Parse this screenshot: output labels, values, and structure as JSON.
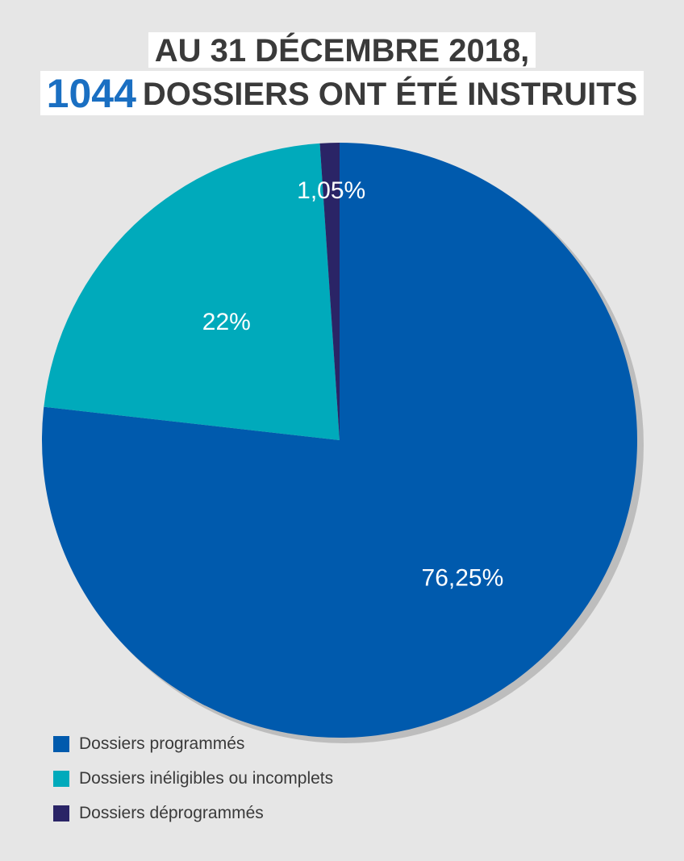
{
  "header": {
    "line1": "AU 31 DÉCEMBRE 2018,",
    "number": "1044",
    "line2_rest": "DOSSIERS ONT ÉTÉ INSTRUITS"
  },
  "chart_data": {
    "type": "pie",
    "title": "AU 31 DÉCEMBRE 2018, 1044 DOSSIERS ONT ÉTÉ INSTRUITS",
    "start_angle": "12 o'clock, clockwise",
    "slices": [
      {
        "name": "Dossiers programmés",
        "value": 76.25,
        "label": "76,25%",
        "color": "#005aad"
      },
      {
        "name": "Dossiers inéligibles ou incomplets",
        "value": 22,
        "label": "22%",
        "color": "#00aabb"
      },
      {
        "name": "Dossiers déprogrammés",
        "value": 1.05,
        "label": "1,05%",
        "color": "#2a2466"
      }
    ],
    "legend_position": "bottom-left"
  }
}
